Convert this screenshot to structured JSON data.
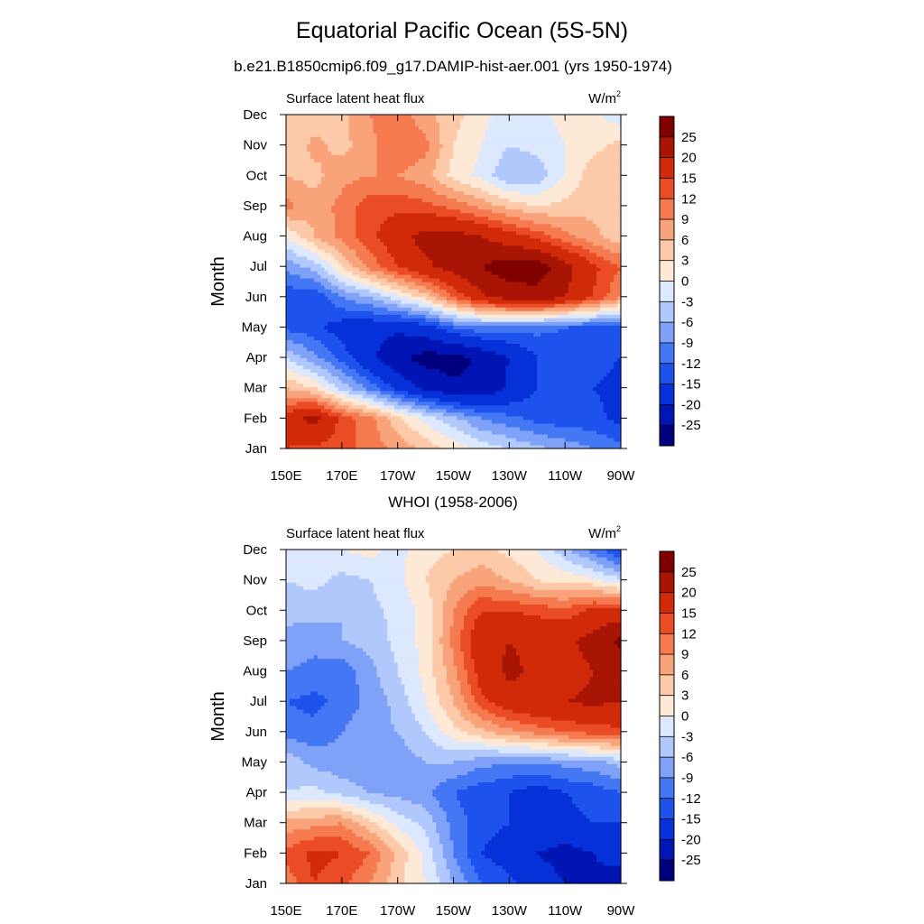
{
  "figure": {
    "title": "Equatorial Pacific Ocean (5S-5N)",
    "subtitle": "b.e21.B1850cmip6.f09_g17.DAMIP-hist-aer.001 (yrs 1950-1974)",
    "second_title": "WHOI (1958-2006)"
  },
  "chart_data": [
    {
      "type": "heatmap",
      "panel_title": "b.e21.B1850cmip6.f09_g17.DAMIP-hist-aer.001 (yrs 1950-1974)",
      "left_label": "Surface latent heat flux",
      "units": "W/m",
      "units_sup": "2",
      "ylabel": "Month",
      "xlabel": "",
      "x_ticks": [
        "150E",
        "170E",
        "170W",
        "150W",
        "130W",
        "110W",
        "90W"
      ],
      "x_lon": [
        150,
        170,
        190,
        210,
        230,
        250,
        270
      ],
      "y_ticks": [
        "Jan",
        "Feb",
        "Mar",
        "Apr",
        "May",
        "Jun",
        "Jul",
        "Aug",
        "Sep",
        "Oct",
        "Nov",
        "Dec"
      ],
      "xlim": [
        150,
        270
      ],
      "ylim": [
        1,
        12
      ],
      "grid": [
        [
          15,
          14,
          13,
          11,
          8,
          5,
          2,
          -1,
          -3,
          -5,
          -7,
          -9,
          -11
        ],
        [
          17,
          22,
          14,
          10,
          4,
          -1,
          -5,
          -9,
          -11,
          -13,
          -14,
          -14,
          -16
        ],
        [
          6,
          3,
          -4,
          -10,
          -16,
          -21,
          -24,
          -24,
          -19,
          -15,
          -14,
          -15,
          -16
        ],
        [
          -3,
          -8,
          -13,
          -19,
          -24,
          -27,
          -27,
          -24,
          -20,
          -15,
          -14,
          -14,
          -15
        ],
        [
          -13,
          -14,
          -17,
          -18,
          -19,
          -17,
          -12,
          -10,
          -10,
          -11,
          -12,
          -13,
          -14
        ],
        [
          -14,
          -15,
          -9,
          -6,
          -1,
          4,
          12,
          19,
          22,
          23,
          20,
          15,
          9
        ],
        [
          -8,
          -5,
          3,
          10,
          15,
          19,
          22,
          25,
          28,
          28,
          22,
          16,
          12
        ],
        [
          0,
          6,
          10,
          14,
          18,
          22,
          22,
          20,
          17,
          14,
          10,
          7,
          4
        ],
        [
          10,
          7,
          10,
          14,
          14,
          13,
          11,
          8,
          5,
          3,
          4,
          5,
          4
        ],
        [
          6,
          5,
          8,
          9,
          9,
          7,
          2,
          -1,
          -6,
          -5,
          0,
          5,
          6
        ],
        [
          3,
          7,
          5,
          8,
          12,
          10,
          3,
          0,
          -3,
          -2,
          0,
          2,
          4
        ],
        [
          3,
          4,
          5,
          9,
          11,
          7,
          4,
          1,
          -2,
          -1,
          1,
          1,
          -2
        ]
      ],
      "levels": [
        -25,
        -20,
        -15,
        -12,
        -9,
        -6,
        -3,
        0,
        3,
        6,
        9,
        12,
        15,
        20,
        25
      ],
      "colors": [
        "#00007f",
        "#0015b3",
        "#0630d8",
        "#1e52ec",
        "#4477f4",
        "#7fa2f8",
        "#b0c8fb",
        "#dbe8fd",
        "#fde9d6",
        "#fcc9a9",
        "#f9a37a",
        "#f57a4f",
        "#ea4d26",
        "#d02a08",
        "#a81505",
        "#800000"
      ]
    },
    {
      "type": "heatmap",
      "panel_title": "WHOI (1958-2006)",
      "left_label": "Surface latent heat flux",
      "units": "W/m",
      "units_sup": "2",
      "ylabel": "Month",
      "xlabel": "",
      "x_ticks": [
        "150E",
        "170E",
        "170W",
        "150W",
        "130W",
        "110W",
        "90W"
      ],
      "x_lon": [
        150,
        170,
        190,
        210,
        230,
        250,
        270
      ],
      "y_ticks": [
        "Jan",
        "Feb",
        "Mar",
        "Apr",
        "May",
        "Jun",
        "Jul",
        "Aug",
        "Sep",
        "Oct",
        "Nov",
        "Dec"
      ],
      "xlim": [
        150,
        270
      ],
      "ylim": [
        1,
        12
      ],
      "grid": [
        [
          10,
          15,
          13,
          9,
          4,
          0,
          -6,
          -12,
          -14,
          -17,
          -20,
          -22,
          -25
        ],
        [
          13,
          16,
          15,
          12,
          5,
          -1,
          -9,
          -15,
          -17,
          -20,
          -22,
          -20,
          -16
        ],
        [
          7,
          8,
          9,
          4,
          -1,
          -4,
          -10,
          -14,
          -15,
          -15,
          -16,
          -15,
          -15
        ],
        [
          -3,
          -2,
          -4,
          -6,
          -7,
          -8,
          -12,
          -14,
          -15,
          -17,
          -15,
          -14,
          -12
        ],
        [
          -4,
          -7,
          -8,
          -9,
          -8,
          -6,
          -6,
          -8,
          -9,
          -9,
          -8,
          -7,
          -5
        ],
        [
          -10,
          -11,
          -9,
          -7,
          -6,
          -3,
          2,
          5,
          8,
          10,
          12,
          13,
          14
        ],
        [
          -12,
          -13,
          -11,
          -8,
          -5,
          0,
          6,
          14,
          18,
          20,
          20,
          21,
          20
        ],
        [
          -9,
          -10,
          -11,
          -7,
          -3,
          1,
          8,
          17,
          21,
          19,
          17,
          20,
          22
        ],
        [
          -7,
          -8,
          -6,
          -5,
          -2,
          1,
          10,
          19,
          20,
          19,
          19,
          22,
          26
        ],
        [
          -5,
          -5,
          -6,
          -4,
          -2,
          1,
          9,
          15,
          15,
          14,
          13,
          16,
          17
        ],
        [
          -3,
          -2,
          -4,
          -3,
          -1,
          3,
          6,
          8,
          6,
          3,
          2,
          1,
          -2
        ],
        [
          -2,
          -1,
          0,
          1,
          -1,
          2,
          3,
          4,
          2,
          0,
          -5,
          -10,
          -16
        ]
      ],
      "levels": [
        -25,
        -20,
        -15,
        -12,
        -9,
        -6,
        -3,
        0,
        3,
        6,
        9,
        12,
        15,
        20,
        25
      ],
      "colors": [
        "#00007f",
        "#0015b3",
        "#0630d8",
        "#1e52ec",
        "#4477f4",
        "#7fa2f8",
        "#b0c8fb",
        "#dbe8fd",
        "#fde9d6",
        "#fcc9a9",
        "#f9a37a",
        "#f57a4f",
        "#ea4d26",
        "#d02a08",
        "#a81505",
        "#800000"
      ]
    }
  ]
}
